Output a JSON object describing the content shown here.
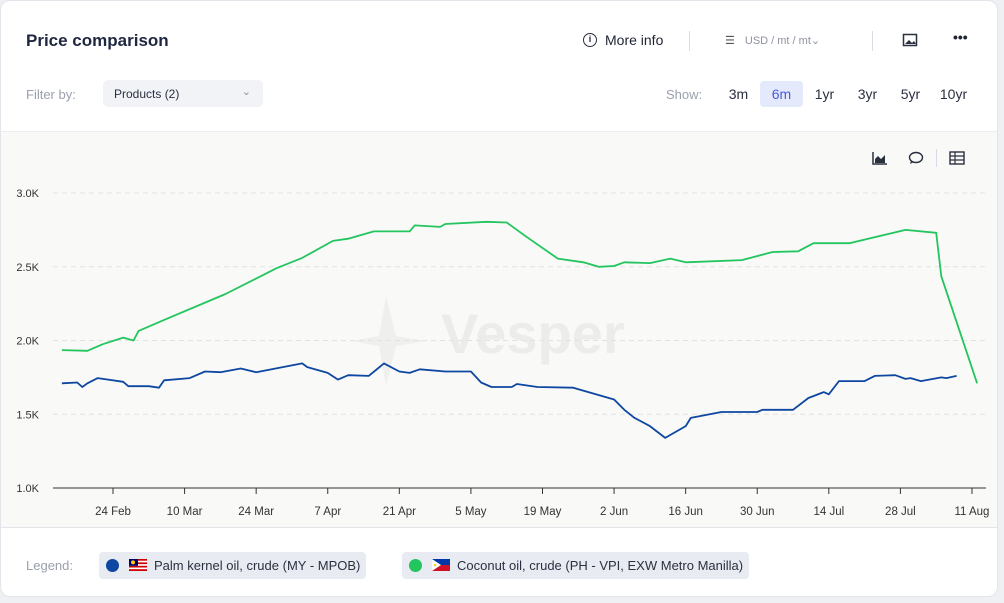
{
  "header": {
    "title": "Price comparison",
    "more_info": "More info",
    "unit": "USD / mt / mt",
    "icons": [
      "info-icon",
      "sliders-icon",
      "image-icon",
      "more-icon"
    ]
  },
  "filter": {
    "label": "Filter by:",
    "value": "Products (2)"
  },
  "show": {
    "label": "Show:",
    "periods": [
      "3m",
      "6m",
      "1yr",
      "3yr",
      "5yr",
      "10yr"
    ],
    "active": "6m"
  },
  "chart_tools": [
    "area-chart-icon",
    "comment-icon",
    "table-icon"
  ],
  "watermark": "Vesper",
  "legend": {
    "label": "Legend:",
    "items": [
      {
        "name": "Palm kernel oil, crude (MY - MPOB)",
        "color": "#0d47a1",
        "flag": "MY"
      },
      {
        "name": "Coconut oil, crude (PH - VPI, EXW Metro Manilla)",
        "color": "#22c55e",
        "flag": "PH"
      }
    ]
  },
  "chart_data": {
    "type": "line",
    "title": "",
    "xlabel": "",
    "ylabel": "",
    "ylim": [
      1000,
      3000
    ],
    "grid": true,
    "legend_position": "bottom-left",
    "yticks": [
      "1.0K",
      "1.5K",
      "2.0K",
      "2.5K",
      "3.0K"
    ],
    "xticks": [
      "24 Feb",
      "10 Mar",
      "24 Mar",
      "7 Apr",
      "21 Apr",
      "5 May",
      "19 May",
      "2 Jun",
      "16 Jun",
      "30 Jun",
      "14 Jul",
      "28 Jul",
      "11 Aug"
    ],
    "series": [
      {
        "name": "Palm kernel oil, crude (MY - MPOB)",
        "color": "#0d47a1",
        "points": [
          [
            "14 Feb",
            1710
          ],
          [
            "17 Feb",
            1715
          ],
          [
            "18 Feb",
            1685
          ],
          [
            "19 Feb",
            1710
          ],
          [
            "21 Feb",
            1745
          ],
          [
            "26 Feb",
            1720
          ],
          [
            "27 Feb",
            1690
          ],
          [
            "3 Mar",
            1690
          ],
          [
            "5 Mar",
            1680
          ],
          [
            "6 Mar",
            1730
          ],
          [
            "11 Mar",
            1745
          ],
          [
            "14 Mar",
            1790
          ],
          [
            "17 Mar",
            1785
          ],
          [
            "21 Mar",
            1810
          ],
          [
            "24 Mar",
            1785
          ],
          [
            "2 Apr",
            1845
          ],
          [
            "3 Apr",
            1820
          ],
          [
            "7 Apr",
            1780
          ],
          [
            "9 Apr",
            1735
          ],
          [
            "11 Apr",
            1765
          ],
          [
            "15 Apr",
            1760
          ],
          [
            "18 Apr",
            1845
          ],
          [
            "21 Apr",
            1790
          ],
          [
            "23 Apr",
            1780
          ],
          [
            "25 Apr",
            1805
          ],
          [
            "30 Apr",
            1790
          ],
          [
            "5 May",
            1790
          ],
          [
            "7 May",
            1715
          ],
          [
            "9 May",
            1685
          ],
          [
            "13 May",
            1685
          ],
          [
            "14 May",
            1705
          ],
          [
            "18 May",
            1685
          ],
          [
            "25 May",
            1680
          ],
          [
            "2 Jun",
            1600
          ],
          [
            "4 Jun",
            1530
          ],
          [
            "6 Jun",
            1475
          ],
          [
            "9 Jun",
            1420
          ],
          [
            "12 Jun",
            1340
          ],
          [
            "16 Jun",
            1420
          ],
          [
            "17 Jun",
            1475
          ],
          [
            "23 Jun",
            1515
          ],
          [
            "30 Jun",
            1515
          ],
          [
            "1 Jul",
            1530
          ],
          [
            "7 Jul",
            1530
          ],
          [
            "10 Jul",
            1610
          ],
          [
            "13 Jul",
            1650
          ],
          [
            "14 Jul",
            1635
          ],
          [
            "16 Jul",
            1725
          ],
          [
            "21 Jul",
            1725
          ],
          [
            "23 Jul",
            1760
          ],
          [
            "27 Jul",
            1765
          ],
          [
            "29 Jul",
            1740
          ],
          [
            "30 Jul",
            1745
          ],
          [
            "1 Aug",
            1725
          ],
          [
            "5 Aug",
            1750
          ],
          [
            "6 Aug",
            1745
          ],
          [
            "8 Aug",
            1760
          ]
        ]
      },
      {
        "name": "Coconut oil, crude (PH - VPI, EXW Metro Manilla)",
        "color": "#22c55e",
        "points": [
          [
            "14 Feb",
            1935
          ],
          [
            "19 Feb",
            1930
          ],
          [
            "22 Feb",
            1975
          ],
          [
            "26 Feb",
            2020
          ],
          [
            "28 Feb",
            2000
          ],
          [
            "1 Mar",
            2065
          ],
          [
            "6 Mar",
            2140
          ],
          [
            "18 Mar",
            2315
          ],
          [
            "28 Mar",
            2490
          ],
          [
            "2 Apr",
            2560
          ],
          [
            "8 Apr",
            2675
          ],
          [
            "11 Apr",
            2690
          ],
          [
            "16 Apr",
            2740
          ],
          [
            "23 Apr",
            2740
          ],
          [
            "24 Apr",
            2780
          ],
          [
            "29 Apr",
            2770
          ],
          [
            "30 Apr",
            2790
          ],
          [
            "8 May",
            2805
          ],
          [
            "12 May",
            2800
          ],
          [
            "16 May",
            2700
          ],
          [
            "22 May",
            2555
          ],
          [
            "27 May",
            2530
          ],
          [
            "30 May",
            2500
          ],
          [
            "2 Jun",
            2505
          ],
          [
            "4 Jun",
            2530
          ],
          [
            "9 Jun",
            2525
          ],
          [
            "13 Jun",
            2555
          ],
          [
            "16 Jun",
            2530
          ],
          [
            "27 Jun",
            2545
          ],
          [
            "3 Jul",
            2600
          ],
          [
            "8 Jul",
            2605
          ],
          [
            "11 Jul",
            2660
          ],
          [
            "18 Jul",
            2660
          ],
          [
            "29 Jul",
            2750
          ],
          [
            "4 Aug",
            2730
          ],
          [
            "5 Aug",
            2435
          ],
          [
            "12 Aug",
            1710
          ]
        ]
      }
    ]
  }
}
